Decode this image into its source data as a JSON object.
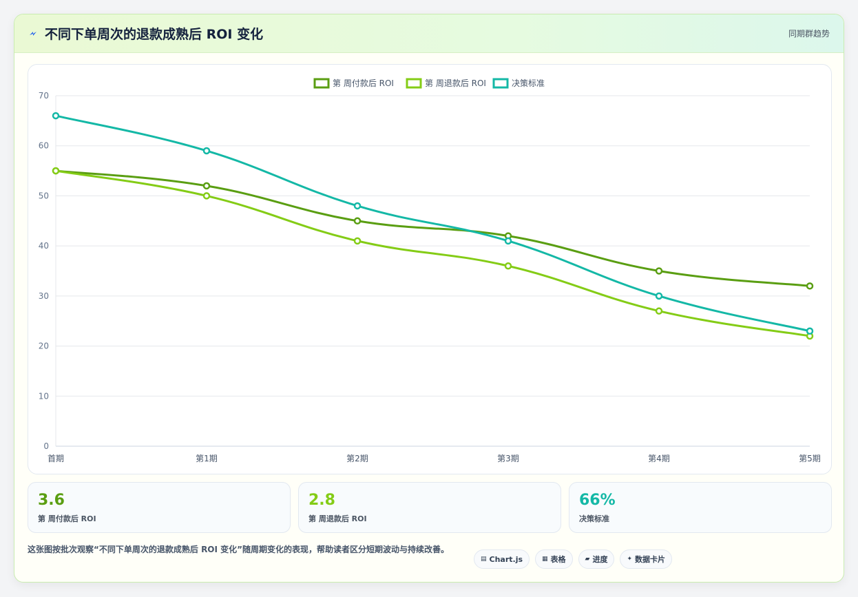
{
  "header": {
    "title": "不同下单周次的退款成熟后 ROI 变化",
    "tag": "同期群趋势",
    "icon": "bolt-icon"
  },
  "chart_data": {
    "type": "line",
    "categories": [
      "首期",
      "第1期",
      "第2期",
      "第3期",
      "第4期",
      "第5期"
    ],
    "series": [
      {
        "name": "第 周付款后 ROI",
        "values": [
          55,
          52,
          45,
          42,
          35,
          32
        ],
        "color": "#5a9e12"
      },
      {
        "name": "第 周退款后 ROI",
        "values": [
          55,
          50,
          41,
          36,
          27,
          22
        ],
        "color": "#84cc16"
      },
      {
        "name": "决策标准",
        "values": [
          66,
          59,
          48,
          41,
          30,
          23
        ],
        "color": "#14b8a6"
      }
    ],
    "yticks": [
      0,
      10,
      20,
      30,
      40,
      50,
      60,
      70
    ],
    "ylim": [
      0,
      70
    ],
    "grid": true,
    "legend": "top-center"
  },
  "stats": [
    {
      "value": "3.6",
      "label": "第 周付款后 ROI",
      "color": "#5a9e12"
    },
    {
      "value": "2.8",
      "label": "第 周退款后 ROI",
      "color": "#84cc16"
    },
    {
      "value": "66%",
      "label": "决策标准",
      "color": "#14b8a6"
    }
  ],
  "footer": {
    "description": "这张图按批次观察“不同下单周次的退款成熟后 ROI 变化”随周期变化的表现，帮助读者区分短期波动与持续改善。",
    "chips": [
      {
        "icon": "chart-icon",
        "glyph": "▤",
        "label": "Chart.js"
      },
      {
        "icon": "table-icon",
        "glyph": "▦",
        "label": "表格"
      },
      {
        "icon": "progress-icon",
        "glyph": "▰",
        "label": "进度"
      },
      {
        "icon": "sparkle-icon",
        "glyph": "✦",
        "label": "数据卡片"
      }
    ]
  }
}
